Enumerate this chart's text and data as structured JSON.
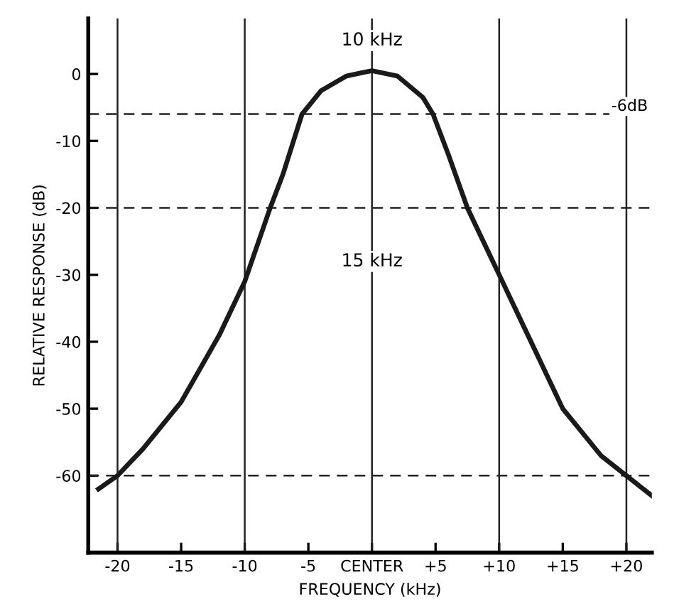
{
  "chart_data": {
    "type": "line",
    "xlabel": "FREQUENCY (kHz)",
    "ylabel": "RELATIVE RESPONSE (dB)",
    "series": [
      {
        "color": "#1a1a1a",
        "x": [
          -21.5,
          -20,
          -18,
          -15,
          -12,
          -10,
          -8,
          -7,
          -5.5,
          -4,
          -2,
          0,
          2,
          4,
          4.8,
          6,
          7.5,
          9,
          10,
          12,
          15,
          18,
          20,
          22
        ],
        "values": [
          -62,
          -60,
          -56,
          -49,
          -39,
          -31,
          -20,
          -15,
          -6,
          -2.5,
          -0.3,
          0.5,
          -0.3,
          -3.5,
          -6,
          -12,
          -20,
          -26,
          -30,
          -38,
          -50,
          -57,
          -60,
          -63
        ]
      }
    ],
    "xlim": [
      -22.3,
      22
    ],
    "ylim": [
      -71.5,
      8.3
    ],
    "xticks": [
      -20,
      -15,
      -10,
      -5,
      {
        "value": 0,
        "label": "CENTER"
      },
      {
        "value": 5,
        "label": "+5"
      },
      {
        "value": 10,
        "label": "+10"
      },
      {
        "value": 15,
        "label": "+15"
      },
      {
        "value": 20,
        "label": "+20"
      }
    ],
    "yticks": [
      0,
      -10,
      -20,
      -30,
      -40,
      -50,
      -60
    ],
    "ref_lines": [
      {
        "axis": "y",
        "value": -6,
        "label": "-6dB",
        "line_style": "dashed"
      },
      {
        "axis": "y",
        "value": -20,
        "line_style": "dashed"
      },
      {
        "axis": "y",
        "value": -60,
        "line_style": "dashed"
      },
      {
        "axis": "x",
        "value": -20,
        "line_style": "solid"
      },
      {
        "axis": "x",
        "value": -10,
        "line_style": "solid"
      },
      {
        "axis": "x",
        "value": 0,
        "line_style": "solid"
      },
      {
        "axis": "x",
        "value": 10,
        "line_style": "solid"
      },
      {
        "axis": "x",
        "value": 20,
        "line_style": "solid"
      }
    ],
    "annotations": [
      {
        "text": "10 kHz",
        "x": 0,
        "y": 5
      },
      {
        "text": "15 kHz",
        "x": 0,
        "y": -28
      }
    ],
    "grid": false,
    "marker": "none",
    "line_style": "solid"
  }
}
